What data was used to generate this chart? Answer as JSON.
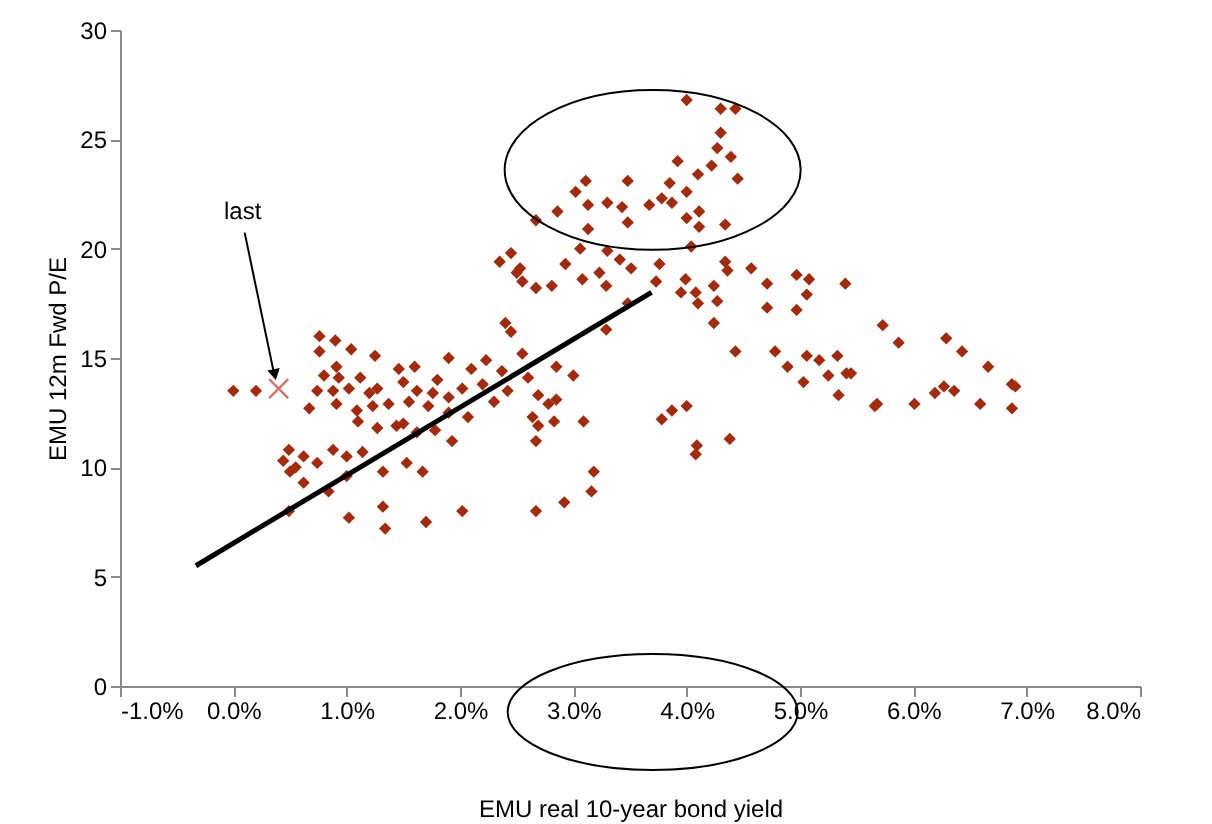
{
  "chart_data": {
    "type": "scatter",
    "xlabel": "EMU real 10-year bond yield",
    "ylabel": "EMU 12m  Fwd P/E",
    "xlim": [
      -1,
      8
    ],
    "xticks": [
      {
        "value": -1,
        "label": "-1.0%"
      },
      {
        "value": 0,
        "label": "0.0%"
      },
      {
        "value": 1,
        "label": "1.0%"
      },
      {
        "value": 2,
        "label": "2.0%"
      },
      {
        "value": 3,
        "label": "3.0%"
      },
      {
        "value": 4,
        "label": "4.0%"
      },
      {
        "value": 5,
        "label": "5.0%"
      },
      {
        "value": 6,
        "label": "6.0%"
      },
      {
        "value": 7,
        "label": "7.0%"
      },
      {
        "value": 8,
        "label": "8.0%"
      }
    ],
    "ylim": [
      0,
      30
    ],
    "yticks": [
      0,
      5,
      10,
      15,
      20,
      25,
      30
    ],
    "grid": false,
    "annotations": [
      {
        "text": "last",
        "x": 0.4,
        "y": 13.6
      }
    ],
    "series": [
      {
        "marker": "diamond",
        "color": "#a52a0c",
        "x": [
          0.0,
          0.2,
          0.76,
          0.9,
          1.04,
          1.25,
          0.76,
          0.91,
          0.8,
          0.93,
          1.12,
          1.46,
          0.74,
          0.88,
          1.02,
          1.2,
          1.27,
          1.5,
          1.62,
          1.76,
          1.9,
          2.02,
          0.67,
          0.91,
          1.09,
          1.23,
          1.37,
          1.55,
          1.72,
          1.9,
          2.07,
          1.1,
          1.27,
          1.44,
          1.62,
          1.78,
          1.93,
          0.49,
          0.62,
          0.44,
          0.74,
          0.88,
          1.0,
          1.14,
          1.32,
          1.53,
          1.67,
          0.62,
          0.84,
          1.0,
          1.32,
          1.02,
          1.34,
          1.7,
          2.02,
          0.49,
          2.23,
          2.37,
          2.42,
          2.55,
          2.4,
          2.35,
          2.53,
          2.67,
          2.64,
          2.67,
          3.02,
          3.11,
          2.86,
          3.13,
          3.3,
          3.43,
          3.48,
          3.13,
          3.67,
          3.78,
          3.87,
          3.85,
          4.0,
          4.0,
          4.11,
          4.11,
          4.34,
          2.67,
          3.06,
          2.93,
          3.3,
          3.41,
          3.51,
          3.76,
          4.04,
          4.34,
          4.36,
          4.57,
          2.5,
          2.55,
          2.81,
          3.08,
          3.23,
          3.29,
          3.73,
          3.99,
          3.95,
          4.08,
          4.24,
          4.1,
          4.27,
          4.71,
          4.71,
          4.97,
          5.08,
          5.06,
          4.97,
          5.4,
          3.48,
          4.24,
          4.43,
          3.29,
          2.45,
          2.85,
          3.0,
          2.6,
          2.69,
          2.78,
          2.85,
          2.83,
          2.69,
          2.67,
          3.09,
          3.78,
          3.87,
          4.0,
          4.09,
          4.08,
          4.38,
          3.18,
          3.16,
          2.92,
          4.78,
          4.89,
          5.06,
          5.17,
          5.33,
          5.25,
          5.41,
          5.03,
          5.34,
          5.66,
          5.73,
          5.87,
          6.29,
          6.43,
          6.66,
          6.87,
          6.9,
          6.19,
          6.27,
          6.36,
          6.59,
          6.87,
          6.01,
          5.68,
          5.45,
          4.0,
          4.3,
          4.43,
          4.3,
          4.27,
          3.92,
          4.22,
          4.39,
          4.1,
          4.45,
          3.48,
          0.5,
          0.55,
          1.5,
          1.8,
          2.1,
          2.2,
          2.3,
          1.9,
          1.6,
          2.45
        ],
        "values": [
          13.5,
          13.5,
          16.0,
          15.8,
          15.4,
          15.1,
          15.3,
          14.6,
          14.2,
          14.1,
          14.1,
          14.5,
          13.5,
          13.5,
          13.6,
          13.4,
          13.6,
          13.9,
          13.5,
          13.4,
          13.2,
          13.6,
          12.7,
          12.9,
          12.6,
          12.8,
          12.9,
          13.0,
          12.8,
          12.5,
          12.3,
          12.1,
          11.8,
          11.9,
          11.6,
          11.7,
          11.2,
          10.8,
          10.5,
          10.3,
          10.2,
          10.8,
          10.5,
          10.7,
          9.8,
          10.2,
          9.8,
          9.3,
          8.9,
          9.6,
          8.2,
          7.7,
          7.2,
          7.5,
          8.0,
          8.0,
          14.9,
          14.4,
          13.5,
          15.2,
          16.6,
          19.4,
          19.1,
          18.2,
          12.3,
          8.0,
          22.6,
          23.1,
          21.7,
          22.0,
          22.1,
          21.9,
          21.2,
          20.9,
          22.0,
          22.3,
          22.1,
          23.0,
          22.6,
          21.4,
          21.7,
          21.0,
          21.1,
          21.3,
          20.0,
          19.3,
          19.9,
          19.5,
          19.1,
          19.3,
          20.1,
          19.4,
          19.0,
          19.1,
          18.9,
          18.5,
          18.3,
          18.6,
          18.9,
          18.3,
          18.5,
          18.6,
          18.0,
          18.0,
          18.3,
          17.5,
          17.6,
          18.4,
          17.3,
          18.8,
          18.6,
          17.9,
          17.2,
          18.4,
          17.5,
          16.6,
          15.3,
          16.3,
          16.2,
          14.6,
          14.2,
          14.1,
          13.3,
          12.9,
          13.1,
          12.1,
          11.9,
          11.2,
          12.1,
          12.2,
          12.6,
          12.8,
          11.0,
          10.6,
          11.3,
          9.8,
          8.9,
          8.4,
          15.3,
          14.6,
          15.1,
          14.9,
          15.1,
          14.2,
          14.3,
          13.9,
          13.3,
          12.8,
          16.5,
          15.7,
          15.9,
          15.3,
          14.6,
          13.8,
          13.7,
          13.4,
          13.7,
          13.5,
          12.9,
          12.7,
          12.9,
          12.9,
          14.3,
          26.8,
          26.4,
          26.4,
          25.3,
          24.6,
          24.0,
          23.8,
          24.2,
          23.4,
          23.2,
          23.1,
          9.8,
          10.0,
          12.0,
          14.0,
          14.5,
          13.8,
          13.0,
          15.0,
          14.6,
          19.8
        ]
      },
      {
        "marker": "cross",
        "color": "#c0392b",
        "x": [
          0.4
        ],
        "values": [
          13.6
        ]
      },
      {
        "type": "line",
        "marker": "none",
        "line_style": "solid",
        "color": "#000000",
        "x": [
          -0.33,
          3.69
        ],
        "values": [
          5.5,
          18.0
        ]
      }
    ]
  }
}
